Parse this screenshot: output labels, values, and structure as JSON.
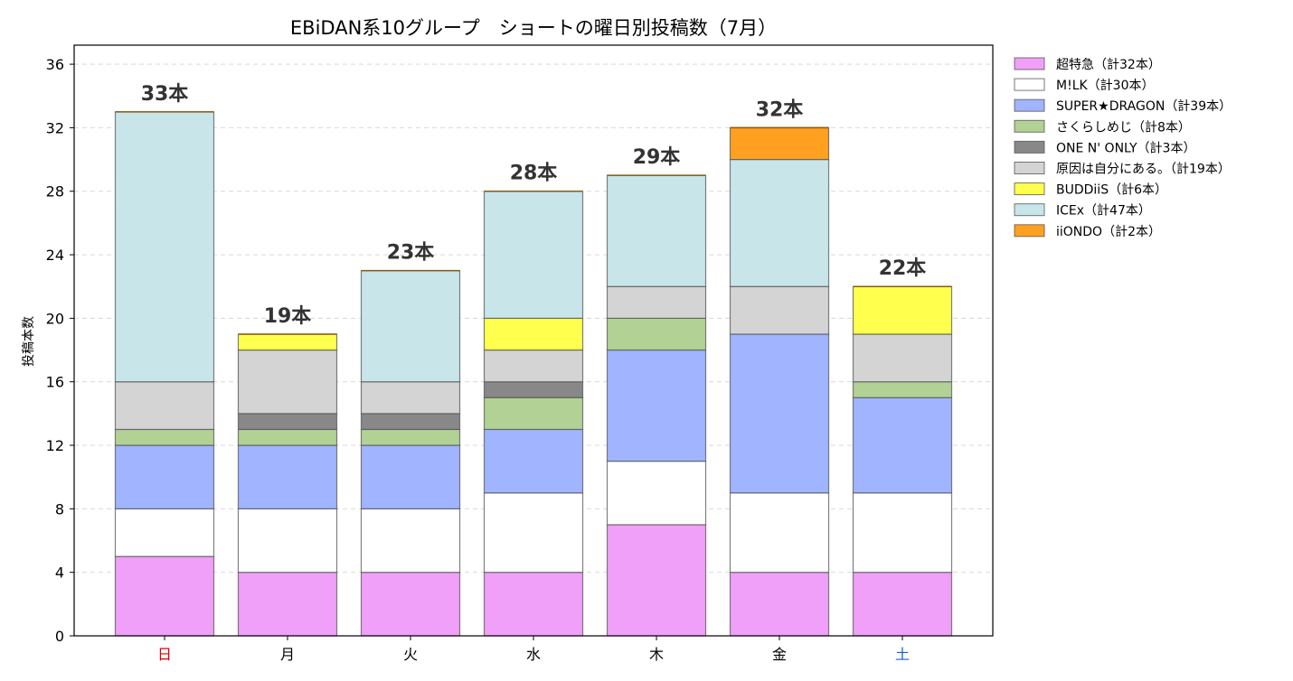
{
  "chart_data": {
    "type": "bar",
    "stacked": true,
    "title": "EBiDAN系10グループ　ショートの曜日別投稿数（7月）",
    "xlabel": "",
    "ylabel": "投稿本数",
    "ylim": [
      0,
      37.2
    ],
    "yticks": [
      0,
      4,
      8,
      12,
      16,
      20,
      24,
      28,
      32,
      36
    ],
    "grid": "y",
    "legend_position": "outside-top-right",
    "categories": [
      "日",
      "月",
      "火",
      "水",
      "木",
      "金",
      "土"
    ],
    "category_colors": [
      "#e00000",
      "#000000",
      "#000000",
      "#000000",
      "#000000",
      "#000000",
      "#1560d0"
    ],
    "totals": [
      33,
      19,
      23,
      28,
      29,
      32,
      22
    ],
    "total_labels": [
      "33本",
      "19本",
      "23本",
      "28本",
      "29本",
      "32本",
      "22本"
    ],
    "series": [
      {
        "name": "超特急（計32本）",
        "color": "#f0a0f8",
        "values": [
          5,
          4,
          4,
          4,
          7,
          4,
          4
        ]
      },
      {
        "name": "M!LK（計30本）",
        "color": "#ffffff",
        "values": [
          3,
          4,
          4,
          5,
          4,
          5,
          5
        ]
      },
      {
        "name": "SUPER★DRAGON（計39本）",
        "color": "#a0b4ff",
        "values": [
          4,
          4,
          4,
          4,
          7,
          10,
          6
        ]
      },
      {
        "name": "さくらしめじ（計8本）",
        "color": "#b2d195",
        "values": [
          1,
          1,
          1,
          2,
          2,
          0,
          1
        ]
      },
      {
        "name": "ONE N' ONLY（計3本）",
        "color": "#888888",
        "values": [
          0,
          1,
          1,
          1,
          0,
          0,
          0
        ]
      },
      {
        "name": "原因は自分にある。（計19本）",
        "color": "#d4d4d4",
        "values": [
          3,
          4,
          2,
          2,
          2,
          3,
          3
        ]
      },
      {
        "name": "BUDDiiS（計6本）",
        "color": "#ffff4d",
        "values": [
          0,
          1,
          0,
          2,
          0,
          0,
          3
        ]
      },
      {
        "name": "ICEx（計47本）",
        "color": "#c8e5ea",
        "values": [
          17,
          0,
          7,
          8,
          7,
          8,
          0
        ]
      },
      {
        "name": "iiONDO（計2本）",
        "color": "#ffa020",
        "values": [
          0,
          0,
          0,
          0,
          0,
          2,
          0
        ]
      }
    ]
  }
}
